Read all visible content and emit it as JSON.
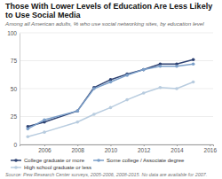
{
  "chart_data": {
    "type": "line",
    "title": "Those With Lower Levels of Education Are Less Likely to Use Social Media",
    "subtitle": "Among all American adults, % who use social networking sites, by education level",
    "source": "Source: Pew Research Center surveys, 2005-2006, 2008-2015. No data are available for 2007.",
    "x": [
      2005,
      2006,
      2008,
      2009,
      2010,
      2011,
      2012,
      2013,
      2014,
      2015
    ],
    "series": [
      {
        "name": "College graduate or more",
        "color": "#2e4272",
        "marker": "circle",
        "values": [
          16,
          20,
          30,
          51,
          58,
          63,
          67,
          72,
          72,
          76
        ]
      },
      {
        "name": "Some college / Associate degree",
        "color": "#7b9fc9",
        "marker": "circle",
        "values": [
          14,
          22,
          30,
          50,
          56,
          62,
          67,
          70,
          70,
          72
        ]
      },
      {
        "name": "High school graduate or less",
        "color": "#b8ccdf",
        "marker": "circle",
        "values": [
          7,
          11,
          20,
          27,
          33,
          40,
          46,
          51,
          50,
          56
        ]
      }
    ],
    "xlim": [
      2004.5,
      2016.2
    ],
    "xticks": [
      2006,
      2008,
      2010,
      2012,
      2014,
      2016
    ],
    "ylim": [
      0,
      100
    ],
    "yticks": [
      0,
      25,
      50,
      75,
      100
    ],
    "grid": true,
    "legend": "bottom"
  }
}
